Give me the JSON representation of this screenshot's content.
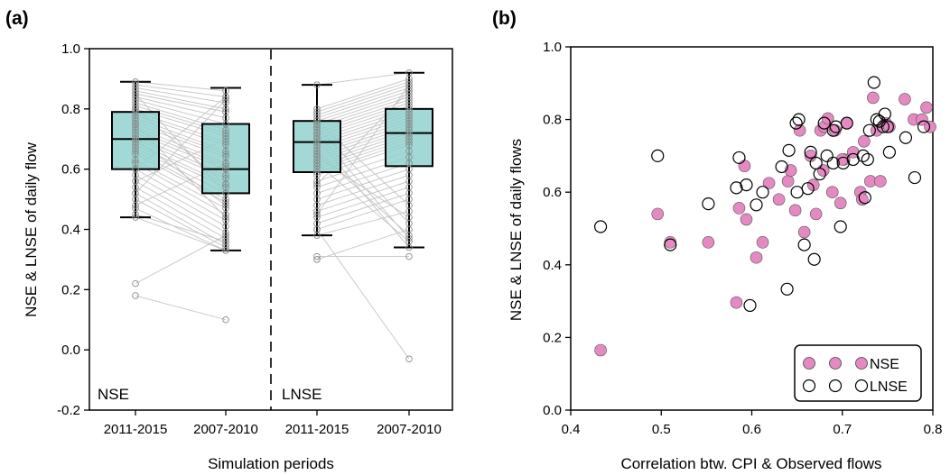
{
  "panels": {
    "a": "(a)",
    "b": "(b)"
  },
  "colors": {
    "box_fill": "#8ecfcc",
    "nse_fill": "#e589c3",
    "line_gray": "#c4c4c4",
    "point_gray": "#8a8a8a"
  },
  "chart_data": [
    {
      "type": "box",
      "panel": "(a)",
      "xlabel": "Simulation periods",
      "ylabel": "NSE & LNSE of daily flow",
      "ylim": [
        -0.2,
        1.0
      ],
      "yticks": [
        "-0.2",
        "0.0",
        "0.2",
        "0.4",
        "0.6",
        "0.8",
        "1.0"
      ],
      "categories": [
        "2011-2015",
        "2007-2010",
        "2011-2015",
        "2007-2010"
      ],
      "group_labels": [
        "NSE",
        "LNSE"
      ],
      "boxes": [
        {
          "q1": 0.6,
          "median": 0.7,
          "q3": 0.79,
          "whisker_low": 0.44,
          "whisker_high": 0.89
        },
        {
          "q1": 0.52,
          "median": 0.6,
          "q3": 0.75,
          "whisker_low": 0.33,
          "whisker_high": 0.87
        },
        {
          "q1": 0.59,
          "median": 0.69,
          "q3": 0.76,
          "whisker_low": 0.38,
          "whisker_high": 0.88
        },
        {
          "q1": 0.61,
          "median": 0.72,
          "q3": 0.8,
          "whisker_low": 0.34,
          "whisker_high": 0.92
        }
      ],
      "pairs_nse": [
        [
          0.89,
          0.86
        ],
        [
          0.88,
          0.84
        ],
        [
          0.87,
          0.82
        ],
        [
          0.86,
          0.8
        ],
        [
          0.85,
          0.79
        ],
        [
          0.84,
          0.77
        ],
        [
          0.83,
          0.75
        ],
        [
          0.82,
          0.73
        ],
        [
          0.81,
          0.72
        ],
        [
          0.8,
          0.71
        ],
        [
          0.79,
          0.69
        ],
        [
          0.78,
          0.68
        ],
        [
          0.77,
          0.66
        ],
        [
          0.76,
          0.65
        ],
        [
          0.75,
          0.64
        ],
        [
          0.74,
          0.62
        ],
        [
          0.73,
          0.61
        ],
        [
          0.72,
          0.6
        ],
        [
          0.71,
          0.58
        ],
        [
          0.7,
          0.57
        ],
        [
          0.69,
          0.55
        ],
        [
          0.68,
          0.54
        ],
        [
          0.67,
          0.52
        ],
        [
          0.66,
          0.5
        ],
        [
          0.65,
          0.49
        ],
        [
          0.63,
          0.47
        ],
        [
          0.62,
          0.45
        ],
        [
          0.6,
          0.43
        ],
        [
          0.58,
          0.41
        ],
        [
          0.56,
          0.39
        ],
        [
          0.54,
          0.37
        ],
        [
          0.52,
          0.35
        ],
        [
          0.5,
          0.34
        ],
        [
          0.47,
          0.33
        ],
        [
          0.45,
          0.36
        ],
        [
          0.44,
          0.33
        ],
        [
          0.22,
          0.38
        ],
        [
          0.18,
          0.1
        ],
        [
          0.6,
          0.84
        ],
        [
          0.52,
          0.83
        ],
        [
          0.7,
          0.48
        ],
        [
          0.75,
          0.44
        ],
        [
          0.8,
          0.55
        ],
        [
          0.85,
          0.52
        ],
        [
          0.56,
          0.7
        ],
        [
          0.48,
          0.62
        ]
      ],
      "pairs_lnse": [
        [
          0.88,
          0.92
        ],
        [
          0.8,
          0.9
        ],
        [
          0.79,
          0.89
        ],
        [
          0.78,
          0.88
        ],
        [
          0.77,
          0.87
        ],
        [
          0.76,
          0.86
        ],
        [
          0.75,
          0.85
        ],
        [
          0.74,
          0.84
        ],
        [
          0.73,
          0.83
        ],
        [
          0.72,
          0.82
        ],
        [
          0.71,
          0.81
        ],
        [
          0.7,
          0.8
        ],
        [
          0.69,
          0.79
        ],
        [
          0.68,
          0.78
        ],
        [
          0.67,
          0.77
        ],
        [
          0.66,
          0.76
        ],
        [
          0.65,
          0.75
        ],
        [
          0.64,
          0.74
        ],
        [
          0.63,
          0.73
        ],
        [
          0.62,
          0.72
        ],
        [
          0.61,
          0.71
        ],
        [
          0.6,
          0.7
        ],
        [
          0.59,
          0.69
        ],
        [
          0.58,
          0.68
        ],
        [
          0.56,
          0.66
        ],
        [
          0.54,
          0.64
        ],
        [
          0.52,
          0.62
        ],
        [
          0.5,
          0.6
        ],
        [
          0.48,
          0.58
        ],
        [
          0.46,
          0.56
        ],
        [
          0.44,
          0.54
        ],
        [
          0.42,
          0.52
        ],
        [
          0.4,
          0.5
        ],
        [
          0.38,
          0.46
        ],
        [
          0.31,
          0.31
        ],
        [
          0.3,
          0.4
        ],
        [
          0.7,
          0.34
        ],
        [
          0.72,
          0.37
        ],
        [
          0.74,
          0.42
        ],
        [
          0.76,
          0.48
        ],
        [
          0.4,
          -0.03
        ],
        [
          0.66,
          0.38
        ],
        [
          0.64,
          0.44
        ],
        [
          0.62,
          0.36
        ],
        [
          0.55,
          0.86
        ],
        [
          0.45,
          0.88
        ]
      ]
    },
    {
      "type": "scatter",
      "panel": "(b)",
      "xlabel": "Correlation btw. CPI & Observed flows",
      "ylabel": "NSE & LNSE of daily flows",
      "xlim": [
        0.4,
        0.8
      ],
      "ylim": [
        0.0,
        1.0
      ],
      "xticks": [
        "0.4",
        "0.5",
        "0.6",
        "0.7",
        "0.8"
      ],
      "yticks": [
        "0.0",
        "0.2",
        "0.4",
        "0.6",
        "0.8",
        "1.0"
      ],
      "legend_position": "bottom-right",
      "series": [
        {
          "name": "NSE",
          "points": [
            [
              0.433,
              0.165
            ],
            [
              0.496,
              0.54
            ],
            [
              0.51,
              0.462
            ],
            [
              0.552,
              0.462
            ],
            [
              0.583,
              0.296
            ],
            [
              0.586,
              0.556
            ],
            [
              0.592,
              0.672
            ],
            [
              0.594,
              0.525
            ],
            [
              0.605,
              0.42
            ],
            [
              0.612,
              0.462
            ],
            [
              0.619,
              0.625
            ],
            [
              0.63,
              0.58
            ],
            [
              0.64,
              0.63
            ],
            [
              0.643,
              0.66
            ],
            [
              0.648,
              0.55
            ],
            [
              0.653,
              0.77
            ],
            [
              0.658,
              0.49
            ],
            [
              0.665,
              0.7
            ],
            [
              0.668,
              0.62
            ],
            [
              0.671,
              0.54
            ],
            [
              0.676,
              0.77
            ],
            [
              0.679,
              0.66
            ],
            [
              0.68,
              0.78
            ],
            [
              0.684,
              0.803
            ],
            [
              0.689,
              0.6
            ],
            [
              0.692,
              0.77
            ],
            [
              0.698,
              0.57
            ],
            [
              0.702,
              0.69
            ],
            [
              0.705,
              0.79
            ],
            [
              0.712,
              0.71
            ],
            [
              0.72,
              0.6
            ],
            [
              0.722,
              0.58
            ],
            [
              0.724,
              0.74
            ],
            [
              0.731,
              0.63
            ],
            [
              0.734,
              0.86
            ],
            [
              0.738,
              0.77
            ],
            [
              0.742,
              0.63
            ],
            [
              0.748,
              0.79
            ],
            [
              0.752,
              0.78
            ],
            [
              0.769,
              0.856
            ],
            [
              0.779,
              0.8
            ],
            [
              0.788,
              0.8
            ],
            [
              0.793,
              0.833
            ],
            [
              0.797,
              0.78
            ],
            [
              0.7,
              0.69
            ]
          ]
        },
        {
          "name": "LNSE",
          "points": [
            [
              0.433,
              0.505
            ],
            [
              0.496,
              0.7
            ],
            [
              0.51,
              0.455
            ],
            [
              0.552,
              0.568
            ],
            [
              0.583,
              0.612
            ],
            [
              0.586,
              0.695
            ],
            [
              0.594,
              0.62
            ],
            [
              0.598,
              0.288
            ],
            [
              0.605,
              0.565
            ],
            [
              0.612,
              0.6
            ],
            [
              0.633,
              0.67
            ],
            [
              0.639,
              0.333
            ],
            [
              0.641,
              0.715
            ],
            [
              0.649,
              0.79
            ],
            [
              0.652,
              0.8
            ],
            [
              0.658,
              0.455
            ],
            [
              0.662,
              0.61
            ],
            [
              0.665,
              0.71
            ],
            [
              0.669,
              0.415
            ],
            [
              0.671,
              0.68
            ],
            [
              0.675,
              0.65
            ],
            [
              0.68,
              0.79
            ],
            [
              0.683,
              0.7
            ],
            [
              0.69,
              0.77
            ],
            [
              0.693,
              0.78
            ],
            [
              0.698,
              0.505
            ],
            [
              0.701,
              0.68
            ],
            [
              0.705,
              0.79
            ],
            [
              0.712,
              0.69
            ],
            [
              0.723,
              0.7
            ],
            [
              0.728,
              0.69
            ],
            [
              0.73,
              0.77
            ],
            [
              0.735,
              0.902
            ],
            [
              0.738,
              0.8
            ],
            [
              0.741,
              0.795
            ],
            [
              0.745,
              0.78
            ],
            [
              0.75,
              0.78
            ],
            [
              0.752,
              0.71
            ],
            [
              0.77,
              0.75
            ],
            [
              0.78,
              0.64
            ],
            [
              0.79,
              0.78
            ],
            [
              0.69,
              0.68
            ],
            [
              0.747,
              0.815
            ],
            [
              0.725,
              0.585
            ],
            [
              0.65,
              0.6
            ]
          ]
        }
      ]
    }
  ]
}
